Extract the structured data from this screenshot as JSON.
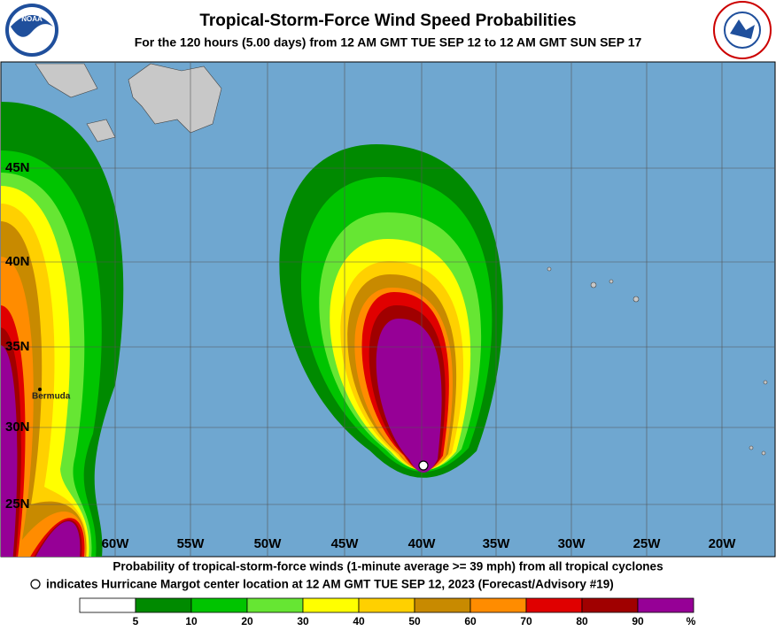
{
  "header": {
    "title": "Tropical-Storm-Force Wind Speed Probabilities",
    "subtitle": "For the 120 hours (5.00 days) from 12 AM GMT TUE SEP 12 to 12 AM GMT SUN SEP 17"
  },
  "logos": {
    "noaa": "NOAA"
  },
  "map": {
    "lat_labels": [
      "45N",
      "40N",
      "35N",
      "30N",
      "25N"
    ],
    "lon_labels": [
      "60W",
      "55W",
      "50W",
      "45W",
      "40W",
      "35W",
      "30W",
      "25W",
      "20W"
    ],
    "place_label": "Bermuda"
  },
  "footer": {
    "line1": "Probability of tropical-storm-force winds (1-minute average >= 39 mph) from all tropical cyclones",
    "line2": "indicates Hurricane Margot center location at 12 AM GMT TUE SEP 12, 2023 (Forecast/Advisory #19)"
  },
  "legend": {
    "labels": [
      "5",
      "10",
      "20",
      "30",
      "40",
      "50",
      "60",
      "70",
      "80",
      "90",
      "%"
    ]
  }
}
